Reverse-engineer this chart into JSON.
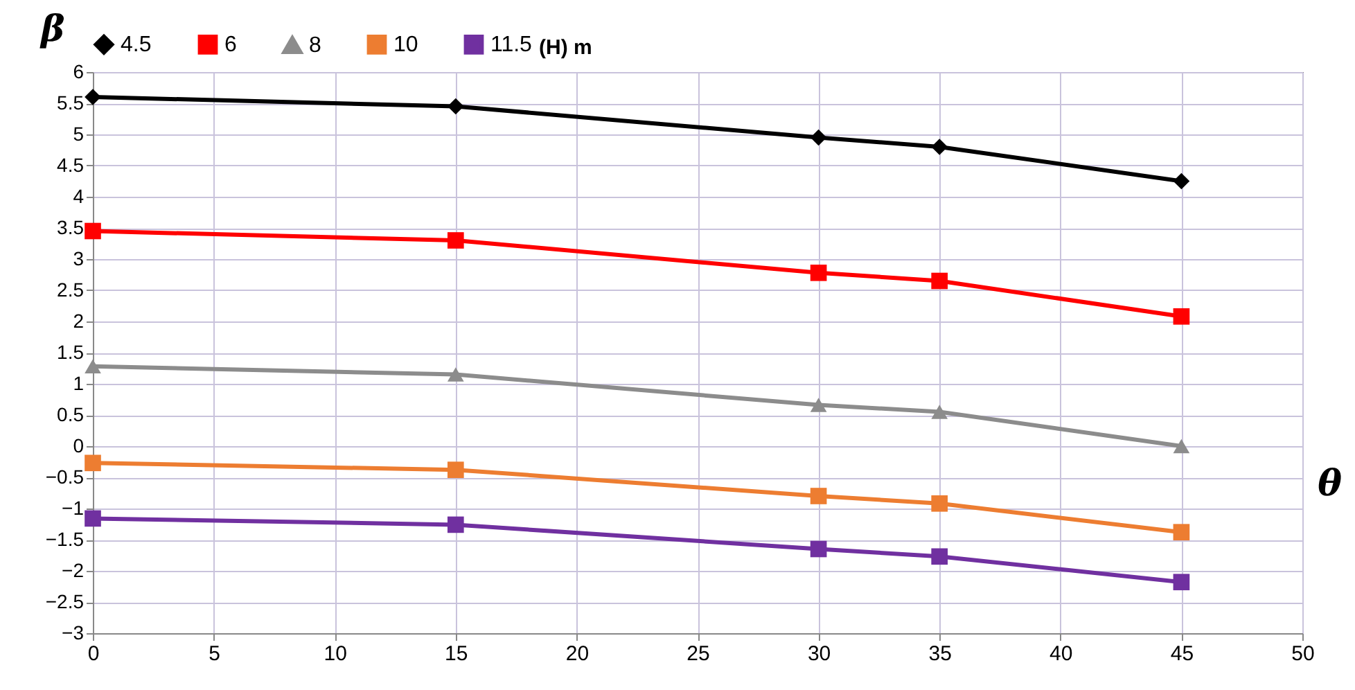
{
  "chart_data": {
    "type": "line",
    "xlabel": "θ",
    "ylabel": "β",
    "legend_title": "(H) m",
    "legend": "top",
    "x": [
      0,
      15,
      30,
      35,
      45
    ],
    "series": [
      {
        "name": "4.5",
        "color": "#000000",
        "marker": "diamond",
        "values": [
          5.6,
          5.45,
          4.95,
          4.8,
          4.25
        ]
      },
      {
        "name": "6",
        "color": "#ff0000",
        "marker": "square",
        "values": [
          3.45,
          3.3,
          2.78,
          2.65,
          2.08
        ]
      },
      {
        "name": "8",
        "color": "#8c8c8c",
        "marker": "triangle",
        "values": [
          1.28,
          1.15,
          0.66,
          0.55,
          0
        ]
      },
      {
        "name": "10",
        "color": "#ed7d31",
        "marker": "square",
        "values": [
          -0.27,
          -0.38,
          -0.8,
          -0.92,
          -1.38
        ]
      },
      {
        "name": "11.5",
        "color": "#7030a0",
        "marker": "square",
        "values": [
          -1.16,
          -1.26,
          -1.65,
          -1.77,
          -2.18
        ]
      }
    ],
    "xlim": [
      0,
      50
    ],
    "xticks": [
      0,
      5,
      10,
      15,
      20,
      25,
      30,
      35,
      40,
      45,
      50
    ],
    "ylim": [
      -3,
      6
    ],
    "yticks": [
      -3,
      -2.5,
      -2,
      -1.5,
      -1,
      -0.5,
      0,
      0.5,
      1,
      1.5,
      2,
      2.5,
      3,
      3.5,
      4,
      4.5,
      5,
      5.5,
      6
    ],
    "grid": true
  }
}
